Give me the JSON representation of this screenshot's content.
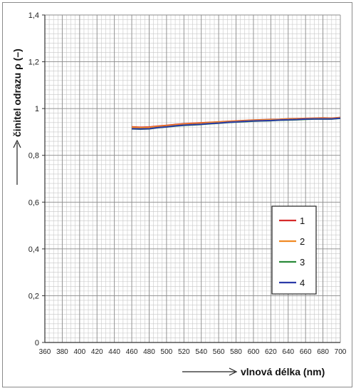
{
  "chart_data": {
    "type": "line",
    "xlabel": "vlnová délka (nm)",
    "ylabel": "činitel odrazu ρ (–)",
    "xlim": [
      360,
      700
    ],
    "ylim": [
      0,
      1.4
    ],
    "x_ticks": [
      360,
      380,
      400,
      420,
      440,
      460,
      480,
      500,
      520,
      540,
      560,
      580,
      600,
      620,
      640,
      660,
      680,
      700
    ],
    "x_tick_labels": [
      "360",
      "380",
      "400",
      "420",
      "440",
      "460",
      "480",
      "500",
      "520",
      "540",
      "560",
      "580",
      "600",
      "620",
      "640",
      "660",
      "680",
      "700"
    ],
    "y_ticks": [
      0,
      0.2,
      0.4,
      0.6,
      0.8,
      1.0,
      1.2,
      1.4
    ],
    "y_tick_labels": [
      "0",
      "0,2",
      "0,4",
      "0,6",
      "0,8",
      "1",
      "1,2",
      "1,4"
    ],
    "x_minor_step": 5,
    "y_minor_step": 0.02,
    "grid": true,
    "legend_position": "right-middle",
    "series": [
      {
        "name": "1",
        "color": "#d62a2a",
        "x": [
          460,
          470,
          480,
          490,
          500,
          510,
          520,
          530,
          540,
          550,
          560,
          570,
          580,
          590,
          600,
          610,
          620,
          630,
          640,
          650,
          660,
          670,
          680,
          690,
          700
        ],
        "y": [
          0.922,
          0.92,
          0.921,
          0.925,
          0.928,
          0.932,
          0.935,
          0.937,
          0.939,
          0.941,
          0.943,
          0.945,
          0.947,
          0.949,
          0.951,
          0.952,
          0.953,
          0.954,
          0.956,
          0.957,
          0.958,
          0.959,
          0.96,
          0.959,
          0.962
        ]
      },
      {
        "name": "2",
        "color": "#f08a24",
        "x": [
          460,
          470,
          480,
          490,
          500,
          510,
          520,
          530,
          540,
          550,
          560,
          570,
          580,
          590,
          600,
          610,
          620,
          630,
          640,
          650,
          660,
          670,
          680,
          690,
          700
        ],
        "y": [
          0.92,
          0.918,
          0.919,
          0.923,
          0.926,
          0.93,
          0.933,
          0.935,
          0.937,
          0.94,
          0.942,
          0.944,
          0.946,
          0.948,
          0.95,
          0.951,
          0.952,
          0.953,
          0.955,
          0.956,
          0.957,
          0.958,
          0.959,
          0.958,
          0.961
        ]
      },
      {
        "name": "3",
        "color": "#2a8a3a",
        "x": [
          460,
          470,
          480,
          490,
          500,
          510,
          520,
          530,
          540,
          550,
          560,
          570,
          580,
          590,
          600,
          610,
          620,
          630,
          640,
          650,
          660,
          670,
          680,
          690,
          700
        ],
        "y": [
          0.913,
          0.912,
          0.913,
          0.918,
          0.921,
          0.925,
          0.928,
          0.93,
          0.932,
          0.935,
          0.937,
          0.94,
          0.942,
          0.944,
          0.946,
          0.947,
          0.948,
          0.95,
          0.951,
          0.952,
          0.954,
          0.955,
          0.955,
          0.955,
          0.958
        ]
      },
      {
        "name": "4",
        "color": "#2b3aa8",
        "x": [
          460,
          470,
          480,
          490,
          500,
          510,
          520,
          530,
          540,
          550,
          560,
          570,
          580,
          590,
          600,
          610,
          620,
          630,
          640,
          650,
          660,
          670,
          680,
          690,
          700
        ],
        "y": [
          0.914,
          0.913,
          0.914,
          0.919,
          0.922,
          0.926,
          0.929,
          0.931,
          0.933,
          0.936,
          0.938,
          0.941,
          0.943,
          0.945,
          0.947,
          0.948,
          0.949,
          0.951,
          0.952,
          0.953,
          0.955,
          0.956,
          0.956,
          0.956,
          0.959
        ]
      }
    ]
  }
}
